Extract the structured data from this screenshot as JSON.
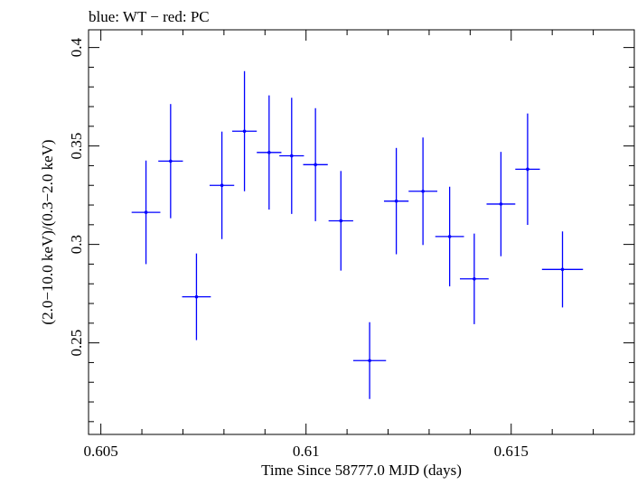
{
  "chart_data": {
    "type": "scatter",
    "title": "blue: WT − red: PC",
    "xlabel": "Time Since 58777.0 MJD (days)",
    "ylabel": "(2.0−10.0 keV)/(0.3−2.0 keV)",
    "xlim": [
      0.6047,
      0.618
    ],
    "ylim": [
      0.2035,
      0.409
    ],
    "xticks": [
      {
        "value": 0.605,
        "label": "0.605"
      },
      {
        "value": 0.61,
        "label": "0.61"
      },
      {
        "value": 0.615,
        "label": "0.615"
      }
    ],
    "yticks": [
      {
        "value": 0.25,
        "label": "0.25"
      },
      {
        "value": 0.3,
        "label": "0.3"
      },
      {
        "value": 0.35,
        "label": "0.35"
      },
      {
        "value": 0.4,
        "label": "0.4"
      }
    ],
    "grid": false,
    "series": [
      {
        "color": "#0000ff",
        "points": [
          {
            "x": 0.6061,
            "y": 0.3163,
            "xerr": 0.00035,
            "yerr_lo": 0.0263,
            "yerr_hi": 0.0263
          },
          {
            "x": 0.6067,
            "y": 0.3423,
            "xerr": 0.0003,
            "yerr_lo": 0.029,
            "yerr_hi": 0.029
          },
          {
            "x": 0.60733,
            "y": 0.2734,
            "xerr": 0.00035,
            "yerr_lo": 0.022,
            "yerr_hi": 0.022
          },
          {
            "x": 0.60795,
            "y": 0.33,
            "xerr": 0.0003,
            "yerr_lo": 0.0273,
            "yerr_hi": 0.0273
          },
          {
            "x": 0.6085,
            "y": 0.3575,
            "xerr": 0.0003,
            "yerr_lo": 0.0305,
            "yerr_hi": 0.0305
          },
          {
            "x": 0.6091,
            "y": 0.3467,
            "xerr": 0.0003,
            "yerr_lo": 0.029,
            "yerr_hi": 0.029
          },
          {
            "x": 0.60965,
            "y": 0.345,
            "xerr": 0.0003,
            "yerr_lo": 0.0295,
            "yerr_hi": 0.0295
          },
          {
            "x": 0.61023,
            "y": 0.3405,
            "xerr": 0.0003,
            "yerr_lo": 0.0287,
            "yerr_hi": 0.0287
          },
          {
            "x": 0.61085,
            "y": 0.312,
            "xerr": 0.0003,
            "yerr_lo": 0.0253,
            "yerr_hi": 0.0253
          },
          {
            "x": 0.61155,
            "y": 0.241,
            "xerr": 0.0004,
            "yerr_lo": 0.0195,
            "yerr_hi": 0.0195
          },
          {
            "x": 0.6122,
            "y": 0.322,
            "xerr": 0.0003,
            "yerr_lo": 0.027,
            "yerr_hi": 0.027
          },
          {
            "x": 0.61285,
            "y": 0.327,
            "xerr": 0.00035,
            "yerr_lo": 0.0273,
            "yerr_hi": 0.0273
          },
          {
            "x": 0.6135,
            "y": 0.304,
            "xerr": 0.00035,
            "yerr_lo": 0.0253,
            "yerr_hi": 0.0253
          },
          {
            "x": 0.6141,
            "y": 0.2825,
            "xerr": 0.00035,
            "yerr_lo": 0.023,
            "yerr_hi": 0.023
          },
          {
            "x": 0.61475,
            "y": 0.3205,
            "xerr": 0.00035,
            "yerr_lo": 0.0265,
            "yerr_hi": 0.0265
          },
          {
            "x": 0.6154,
            "y": 0.3382,
            "xerr": 0.0003,
            "yerr_lo": 0.0283,
            "yerr_hi": 0.0283
          },
          {
            "x": 0.61625,
            "y": 0.2873,
            "xerr": 0.0005,
            "yerr_lo": 0.0193,
            "yerr_hi": 0.0193
          }
        ]
      }
    ]
  }
}
